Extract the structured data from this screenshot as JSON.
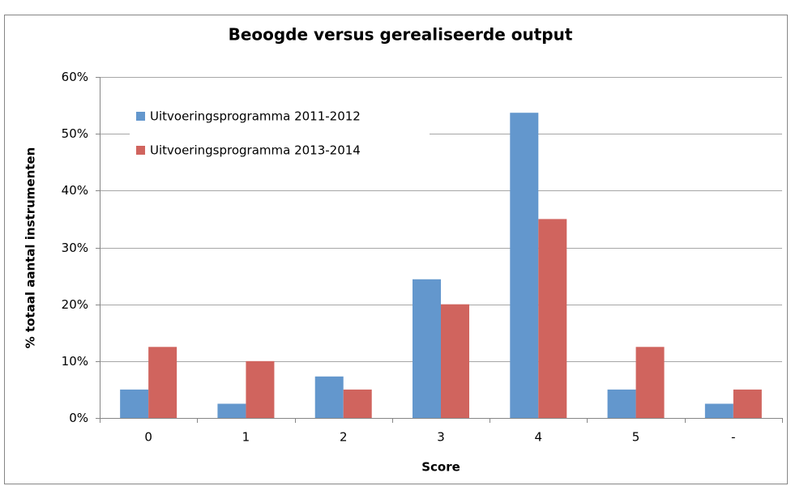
{
  "chart_data": {
    "type": "bar",
    "title": "Beoogde versus gerealiseerde output",
    "x_label": "Score",
    "y_label": "% totaal aantal instrumenten",
    "categories": [
      "0",
      "1",
      "2",
      "3",
      "4",
      "5",
      "-"
    ],
    "series": [
      {
        "name": "Uitvoeringsprogramma 2011-2012",
        "color": "#6397cd",
        "values": [
          5,
          2.5,
          7.3,
          24.4,
          53.7,
          5,
          2.5
        ]
      },
      {
        "name": "Uitvoeringsprogramma 2013-2014",
        "color": "#d0645e",
        "values": [
          12.5,
          10,
          5,
          20,
          35,
          12.5,
          5
        ]
      }
    ],
    "ylim": [
      0,
      60
    ],
    "yticks": [
      {
        "value": 0,
        "label": "0%"
      },
      {
        "value": 10,
        "label": "10%"
      },
      {
        "value": 20,
        "label": "20%"
      },
      {
        "value": 30,
        "label": "30%"
      },
      {
        "value": 40,
        "label": "40%"
      },
      {
        "value": 50,
        "label": "50%"
      },
      {
        "value": 60,
        "label": "60%"
      }
    ],
    "grid": true,
    "legend": "top-left"
  }
}
